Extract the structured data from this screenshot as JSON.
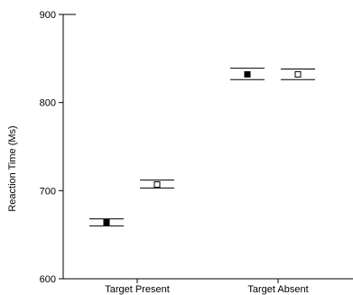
{
  "chart_data": {
    "type": "scatter",
    "title": "",
    "ylabel": "Reaction Time (Ms)",
    "xlabel": "",
    "ylim": [
      600,
      900
    ],
    "yticks": [
      600,
      700,
      800,
      900
    ],
    "categories": [
      "Target Present",
      "Target Absent"
    ],
    "grid": false,
    "legend": "none",
    "series": [
      {
        "marker": "filled-square",
        "color": "#000000",
        "points": [
          {
            "category": "Target Present",
            "value": 664,
            "error_low": 660,
            "error_high": 668
          },
          {
            "category": "Target Absent",
            "value": 832,
            "error_low": 826,
            "error_high": 839
          }
        ]
      },
      {
        "marker": "open-square",
        "color": "#000000",
        "points": [
          {
            "category": "Target Present",
            "value": 707,
            "error_low": 703,
            "error_high": 712
          },
          {
            "category": "Target Absent",
            "value": 832,
            "error_low": 826,
            "error_high": 838
          }
        ]
      }
    ]
  }
}
